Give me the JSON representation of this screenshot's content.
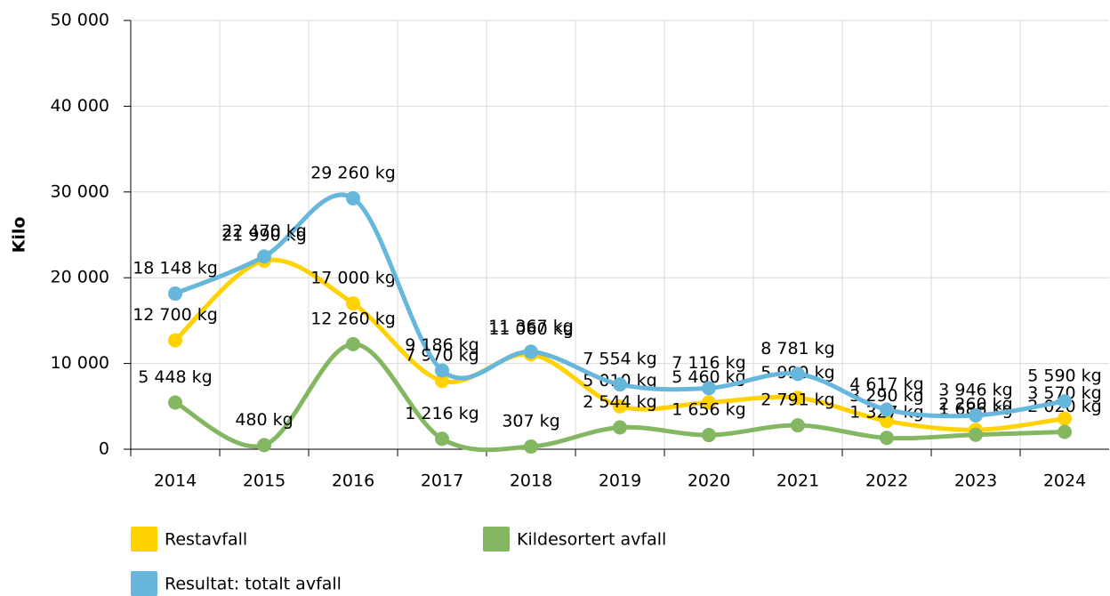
{
  "chart_data": {
    "type": "line",
    "y_label": "Kilo",
    "categories": [
      "2014",
      "2015",
      "2016",
      "2017",
      "2018",
      "2019",
      "2020",
      "2021",
      "2022",
      "2023",
      "2024"
    ],
    "series": [
      {
        "name": "Restavfall",
        "color": "#ffd200",
        "values": [
          12700,
          21990,
          17000,
          7970,
          11060,
          5010,
          5460,
          5990,
          3290,
          2260,
          3570
        ],
        "value_labels": [
          "12 700 kg",
          "21 990 kg",
          "17 000 kg",
          "7 970 kg",
          "11 060 kg",
          "5 010 kg",
          "5 460 kg",
          "5 990 kg",
          "3 290 kg",
          "2 260 kg",
          "3 570 kg"
        ]
      },
      {
        "name": "Kildesortert avfall",
        "color": "#84b761",
        "values": [
          5448,
          480,
          12260,
          1216,
          307,
          2544,
          1656,
          2791,
          1327,
          1686,
          2020
        ],
        "value_labels": [
          "5 448 kg",
          "480 kg",
          "12 260 kg",
          "1 216 kg",
          "307 kg",
          "2 544 kg",
          "1 656 kg",
          "2 791 kg",
          "1 327 kg",
          "1 686 kg",
          "2 020 kg"
        ]
      },
      {
        "name": "Resultat: totalt avfall",
        "color": "#67b7dc",
        "values": [
          18148,
          22470,
          29260,
          9186,
          11367,
          7554,
          7116,
          8781,
          4617,
          3946,
          5590
        ],
        "value_labels": [
          "18 148 kg",
          "22 470 kg",
          "29 260 kg",
          "9 186 kg",
          "11 367 kg",
          "7 554 kg",
          "7 116 kg",
          "8 781 kg",
          "4 617 kg",
          "3 946 kg",
          "5 590 kg"
        ]
      }
    ],
    "ylim": [
      0,
      50000
    ],
    "yticks": [
      0,
      {
        "value": 10000,
        "label": "10 000"
      },
      {
        "value": 20000,
        "label": "20 000"
      },
      {
        "value": 30000,
        "label": "30 000"
      },
      {
        "value": 40000,
        "label": "40 000"
      },
      {
        "value": 50000,
        "label": "50 000"
      }
    ],
    "grid": true
  }
}
